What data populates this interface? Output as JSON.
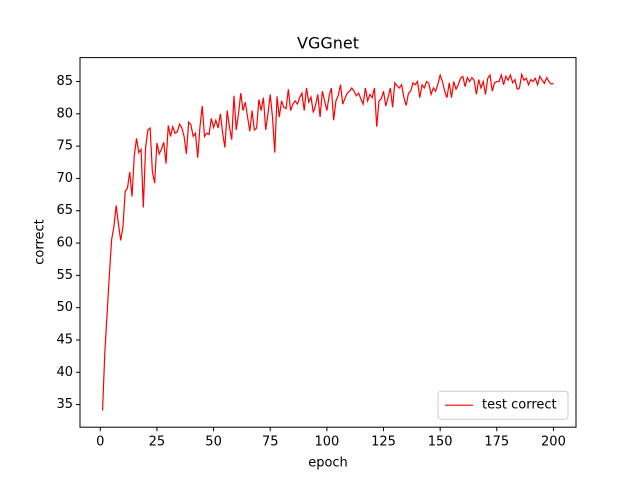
{
  "chart_data": {
    "type": "line",
    "title": "VGGnet",
    "x_label": "epoch",
    "y_label": "correct",
    "x": [
      1,
      2,
      3,
      4,
      5,
      6,
      7,
      8,
      9,
      10,
      11,
      12,
      13,
      14,
      15,
      16,
      17,
      18,
      19,
      20,
      21,
      22,
      23,
      24,
      25,
      26,
      27,
      28,
      29,
      30,
      31,
      32,
      33,
      34,
      35,
      36,
      37,
      38,
      39,
      40,
      41,
      42,
      43,
      44,
      45,
      46,
      47,
      48,
      49,
      50,
      51,
      52,
      53,
      54,
      55,
      56,
      57,
      58,
      59,
      60,
      61,
      62,
      63,
      64,
      65,
      66,
      67,
      68,
      69,
      70,
      71,
      72,
      73,
      74,
      75,
      76,
      77,
      78,
      79,
      80,
      81,
      82,
      83,
      84,
      85,
      86,
      87,
      88,
      89,
      90,
      91,
      92,
      93,
      94,
      95,
      96,
      97,
      98,
      99,
      100,
      101,
      102,
      103,
      104,
      105,
      106,
      107,
      108,
      109,
      110,
      111,
      112,
      113,
      114,
      115,
      116,
      117,
      118,
      119,
      120,
      121,
      122,
      123,
      124,
      125,
      126,
      127,
      128,
      129,
      130,
      131,
      132,
      133,
      134,
      135,
      136,
      137,
      138,
      139,
      140,
      141,
      142,
      143,
      144,
      145,
      146,
      147,
      148,
      149,
      150,
      151,
      152,
      153,
      154,
      155,
      156,
      157,
      158,
      159,
      160,
      161,
      162,
      163,
      164,
      165,
      166,
      167,
      168,
      169,
      170,
      171,
      172,
      173,
      174,
      175,
      176,
      177,
      178,
      179,
      180,
      181,
      182,
      183,
      184,
      185,
      186,
      187,
      188,
      189,
      190,
      191,
      192,
      193,
      194,
      195,
      196,
      197,
      198,
      199,
      200
    ],
    "series": [
      {
        "name": "test correct",
        "color": "#ff0000",
        "values": [
          34.1,
          43,
          49,
          55,
          60.5,
          62.5,
          65.8,
          63,
          60.4,
          62.5,
          68,
          68.5,
          71,
          67.2,
          73.5,
          76.2,
          74,
          74.5,
          65.5,
          74.8,
          77.5,
          77.8,
          71,
          69.3,
          75.5,
          73.8,
          74.5,
          75.6,
          72.3,
          78.2,
          76.5,
          78,
          77,
          77.2,
          78.4,
          77.8,
          76.5,
          73.8,
          78.7,
          78.3,
          76.5,
          77,
          73.2,
          78,
          81.2,
          76.5,
          77,
          76.8,
          79.3,
          77.9,
          79,
          77.8,
          80,
          77,
          74.8,
          80.5,
          78,
          76,
          82.8,
          77.5,
          80,
          83.2,
          80.5,
          81.8,
          79.5,
          77.3,
          80.5,
          77.5,
          77.8,
          82.2,
          80.5,
          82.5,
          77.5,
          80,
          83,
          79.5,
          74,
          82.7,
          79.5,
          82,
          81,
          80.8,
          83.8,
          80.5,
          81.5,
          82,
          81.5,
          82.5,
          83.2,
          80.5,
          84,
          81.8,
          82.6,
          80.2,
          81.3,
          83,
          79.5,
          83.5,
          82,
          80.5,
          82.8,
          84,
          79,
          82,
          82.8,
          84.5,
          81.5,
          82.4,
          83.2,
          83.5,
          84,
          83.5,
          82.8,
          83.2,
          82.3,
          81.5,
          84,
          82,
          83,
          82.5,
          84,
          78,
          82,
          82.3,
          83.5,
          81.2,
          82.5,
          84,
          81,
          84.8,
          84.3,
          84,
          84.5,
          82.5,
          81.3,
          83.2,
          83.5,
          84.8,
          84.5,
          85,
          82.5,
          84.5,
          84,
          85,
          84.7,
          83,
          84,
          83.5,
          84.6,
          86,
          85,
          83.5,
          82.5,
          84.8,
          82.5,
          85,
          83.8,
          84.5,
          85.5,
          85.8,
          84.2,
          85.6,
          85,
          85.6,
          85.2,
          83,
          85.3,
          84,
          85,
          83,
          85.5,
          86,
          83.5,
          84.8,
          85,
          85,
          86,
          84.5,
          85.8,
          85.2,
          86,
          84.8,
          85.3,
          83.8,
          84,
          86.1,
          85.2,
          85.5,
          84.5,
          85.3,
          85,
          85.5,
          84.5,
          85.8,
          85.2,
          84.7,
          85.6,
          85,
          84.6,
          84.7
        ]
      }
    ],
    "xlim": [
      -8.95,
      209.95
    ],
    "xticks": [
      0,
      25,
      50,
      75,
      100,
      125,
      150,
      175,
      200
    ],
    "ylim": [
      31.5,
      88.7
    ],
    "yticks": [
      35,
      40,
      45,
      50,
      55,
      60,
      65,
      70,
      75,
      80,
      85
    ],
    "legend": "lower right"
  }
}
